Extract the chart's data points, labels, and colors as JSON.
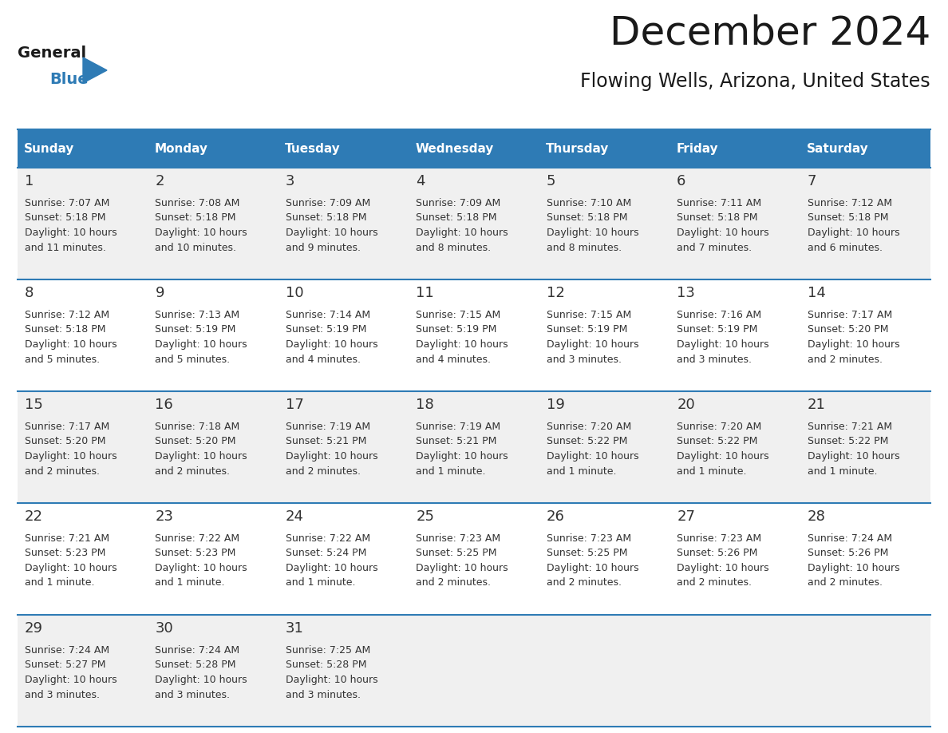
{
  "title": "December 2024",
  "subtitle": "Flowing Wells, Arizona, United States",
  "header_bg": "#2E7BB5",
  "header_text_color": "#FFFFFF",
  "day_names": [
    "Sunday",
    "Monday",
    "Tuesday",
    "Wednesday",
    "Thursday",
    "Friday",
    "Saturday"
  ],
  "row_bg_odd": "#F0F0F0",
  "row_bg_even": "#FFFFFF",
  "cell_border_color": "#2E7BB5",
  "date_color": "#333333",
  "text_color": "#333333",
  "days": [
    {
      "day": 1,
      "col": 0,
      "row": 0,
      "sunrise": "7:07 AM",
      "sunset": "5:18 PM",
      "daylight": "10 hours and 11 minutes."
    },
    {
      "day": 2,
      "col": 1,
      "row": 0,
      "sunrise": "7:08 AM",
      "sunset": "5:18 PM",
      "daylight": "10 hours and 10 minutes."
    },
    {
      "day": 3,
      "col": 2,
      "row": 0,
      "sunrise": "7:09 AM",
      "sunset": "5:18 PM",
      "daylight": "10 hours and 9 minutes."
    },
    {
      "day": 4,
      "col": 3,
      "row": 0,
      "sunrise": "7:09 AM",
      "sunset": "5:18 PM",
      "daylight": "10 hours and 8 minutes."
    },
    {
      "day": 5,
      "col": 4,
      "row": 0,
      "sunrise": "7:10 AM",
      "sunset": "5:18 PM",
      "daylight": "10 hours and 8 minutes."
    },
    {
      "day": 6,
      "col": 5,
      "row": 0,
      "sunrise": "7:11 AM",
      "sunset": "5:18 PM",
      "daylight": "10 hours and 7 minutes."
    },
    {
      "day": 7,
      "col": 6,
      "row": 0,
      "sunrise": "7:12 AM",
      "sunset": "5:18 PM",
      "daylight": "10 hours and 6 minutes."
    },
    {
      "day": 8,
      "col": 0,
      "row": 1,
      "sunrise": "7:12 AM",
      "sunset": "5:18 PM",
      "daylight": "10 hours and 5 minutes."
    },
    {
      "day": 9,
      "col": 1,
      "row": 1,
      "sunrise": "7:13 AM",
      "sunset": "5:19 PM",
      "daylight": "10 hours and 5 minutes."
    },
    {
      "day": 10,
      "col": 2,
      "row": 1,
      "sunrise": "7:14 AM",
      "sunset": "5:19 PM",
      "daylight": "10 hours and 4 minutes."
    },
    {
      "day": 11,
      "col": 3,
      "row": 1,
      "sunrise": "7:15 AM",
      "sunset": "5:19 PM",
      "daylight": "10 hours and 4 minutes."
    },
    {
      "day": 12,
      "col": 4,
      "row": 1,
      "sunrise": "7:15 AM",
      "sunset": "5:19 PM",
      "daylight": "10 hours and 3 minutes."
    },
    {
      "day": 13,
      "col": 5,
      "row": 1,
      "sunrise": "7:16 AM",
      "sunset": "5:19 PM",
      "daylight": "10 hours and 3 minutes."
    },
    {
      "day": 14,
      "col": 6,
      "row": 1,
      "sunrise": "7:17 AM",
      "sunset": "5:20 PM",
      "daylight": "10 hours and 2 minutes."
    },
    {
      "day": 15,
      "col": 0,
      "row": 2,
      "sunrise": "7:17 AM",
      "sunset": "5:20 PM",
      "daylight": "10 hours and 2 minutes."
    },
    {
      "day": 16,
      "col": 1,
      "row": 2,
      "sunrise": "7:18 AM",
      "sunset": "5:20 PM",
      "daylight": "10 hours and 2 minutes."
    },
    {
      "day": 17,
      "col": 2,
      "row": 2,
      "sunrise": "7:19 AM",
      "sunset": "5:21 PM",
      "daylight": "10 hours and 2 minutes."
    },
    {
      "day": 18,
      "col": 3,
      "row": 2,
      "sunrise": "7:19 AM",
      "sunset": "5:21 PM",
      "daylight": "10 hours and 1 minute."
    },
    {
      "day": 19,
      "col": 4,
      "row": 2,
      "sunrise": "7:20 AM",
      "sunset": "5:22 PM",
      "daylight": "10 hours and 1 minute."
    },
    {
      "day": 20,
      "col": 5,
      "row": 2,
      "sunrise": "7:20 AM",
      "sunset": "5:22 PM",
      "daylight": "10 hours and 1 minute."
    },
    {
      "day": 21,
      "col": 6,
      "row": 2,
      "sunrise": "7:21 AM",
      "sunset": "5:22 PM",
      "daylight": "10 hours and 1 minute."
    },
    {
      "day": 22,
      "col": 0,
      "row": 3,
      "sunrise": "7:21 AM",
      "sunset": "5:23 PM",
      "daylight": "10 hours and 1 minute."
    },
    {
      "day": 23,
      "col": 1,
      "row": 3,
      "sunrise": "7:22 AM",
      "sunset": "5:23 PM",
      "daylight": "10 hours and 1 minute."
    },
    {
      "day": 24,
      "col": 2,
      "row": 3,
      "sunrise": "7:22 AM",
      "sunset": "5:24 PM",
      "daylight": "10 hours and 1 minute."
    },
    {
      "day": 25,
      "col": 3,
      "row": 3,
      "sunrise": "7:23 AM",
      "sunset": "5:25 PM",
      "daylight": "10 hours and 2 minutes."
    },
    {
      "day": 26,
      "col": 4,
      "row": 3,
      "sunrise": "7:23 AM",
      "sunset": "5:25 PM",
      "daylight": "10 hours and 2 minutes."
    },
    {
      "day": 27,
      "col": 5,
      "row": 3,
      "sunrise": "7:23 AM",
      "sunset": "5:26 PM",
      "daylight": "10 hours and 2 minutes."
    },
    {
      "day": 28,
      "col": 6,
      "row": 3,
      "sunrise": "7:24 AM",
      "sunset": "5:26 PM",
      "daylight": "10 hours and 2 minutes."
    },
    {
      "day": 29,
      "col": 0,
      "row": 4,
      "sunrise": "7:24 AM",
      "sunset": "5:27 PM",
      "daylight": "10 hours and 3 minutes."
    },
    {
      "day": 30,
      "col": 1,
      "row": 4,
      "sunrise": "7:24 AM",
      "sunset": "5:28 PM",
      "daylight": "10 hours and 3 minutes."
    },
    {
      "day": 31,
      "col": 2,
      "row": 4,
      "sunrise": "7:25 AM",
      "sunset": "5:28 PM",
      "daylight": "10 hours and 3 minutes."
    }
  ],
  "logo_color_general": "#1A1A1A",
  "logo_color_blue": "#2E7BB5",
  "logo_triangle_color": "#2E7BB5",
  "title_fontsize": 36,
  "subtitle_fontsize": 17,
  "header_fontsize": 11,
  "day_num_fontsize": 13,
  "cell_text_fontsize": 9
}
